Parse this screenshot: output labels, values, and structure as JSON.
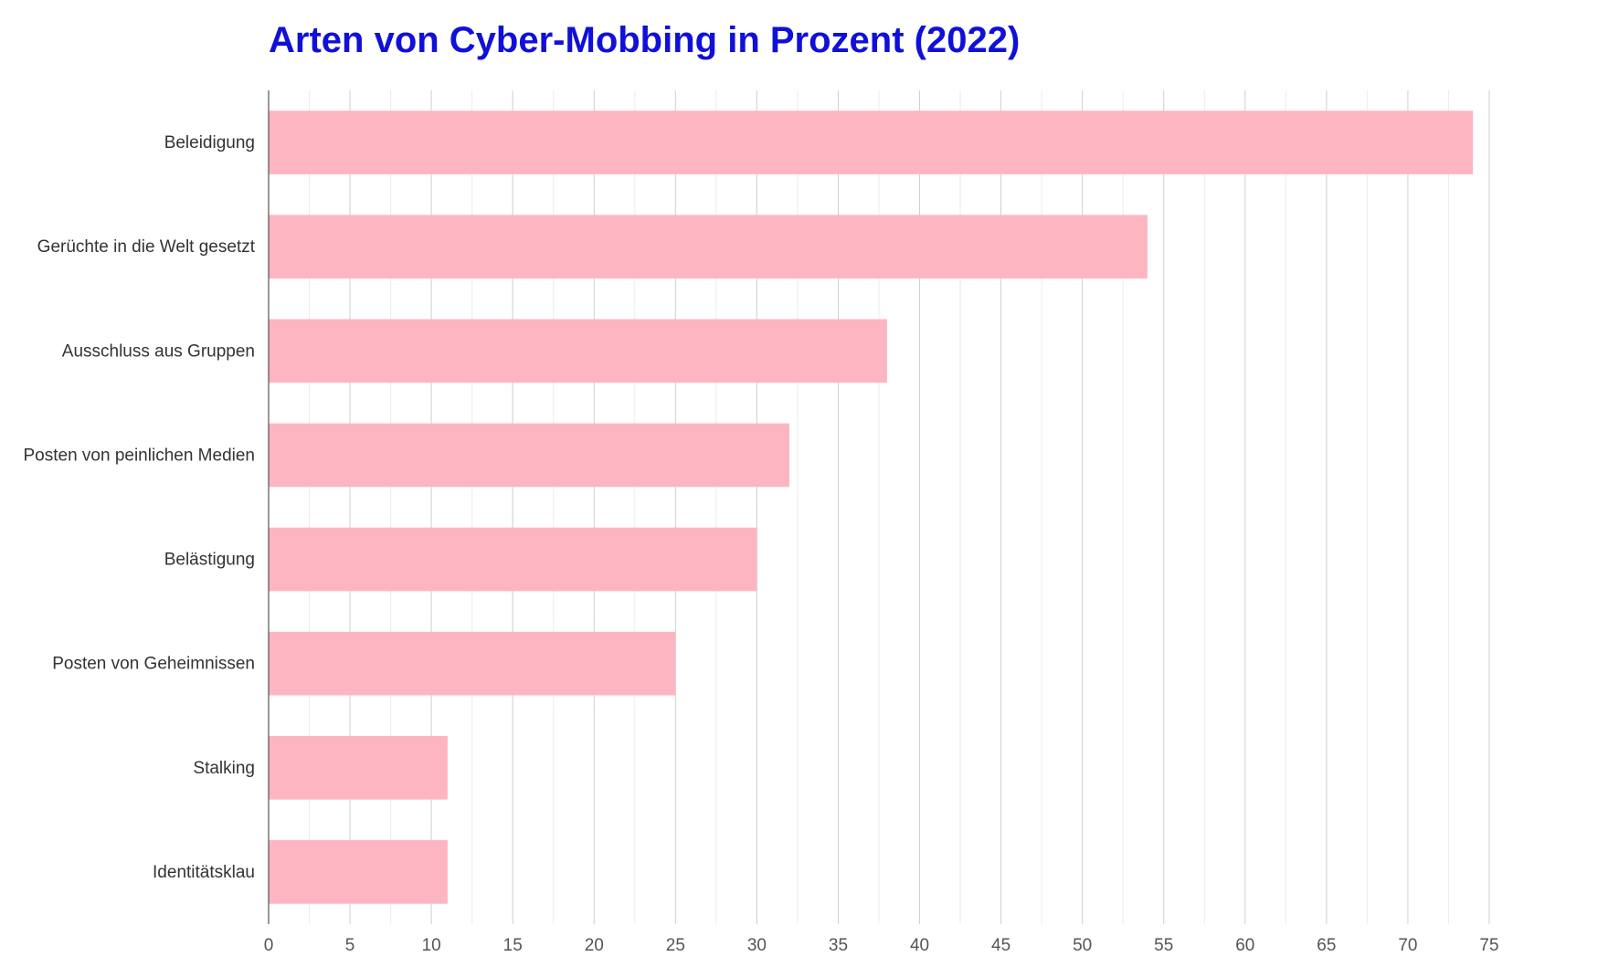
{
  "chart_data": {
    "type": "bar",
    "orientation": "horizontal",
    "title": "Arten von Cyber-Mobbing in Prozent (2022)",
    "categories": [
      "Beleidigung",
      "Gerüchte in die Welt gesetzt",
      "Ausschluss aus Gruppen",
      "Posten von peinlichen Medien",
      "Belästigung",
      "Posten von Geheimnissen",
      "Stalking",
      "Identitätsklau"
    ],
    "values": [
      74,
      54,
      38,
      32,
      30,
      25,
      11,
      11
    ],
    "xlim": [
      0,
      75
    ],
    "xticks": [
      0,
      5,
      10,
      15,
      20,
      25,
      30,
      35,
      40,
      45,
      50,
      55,
      60,
      65,
      70,
      75
    ],
    "grid": true,
    "legend": "none",
    "colors": {
      "bar": "#fdb6c1",
      "title": "#1010d8"
    }
  }
}
